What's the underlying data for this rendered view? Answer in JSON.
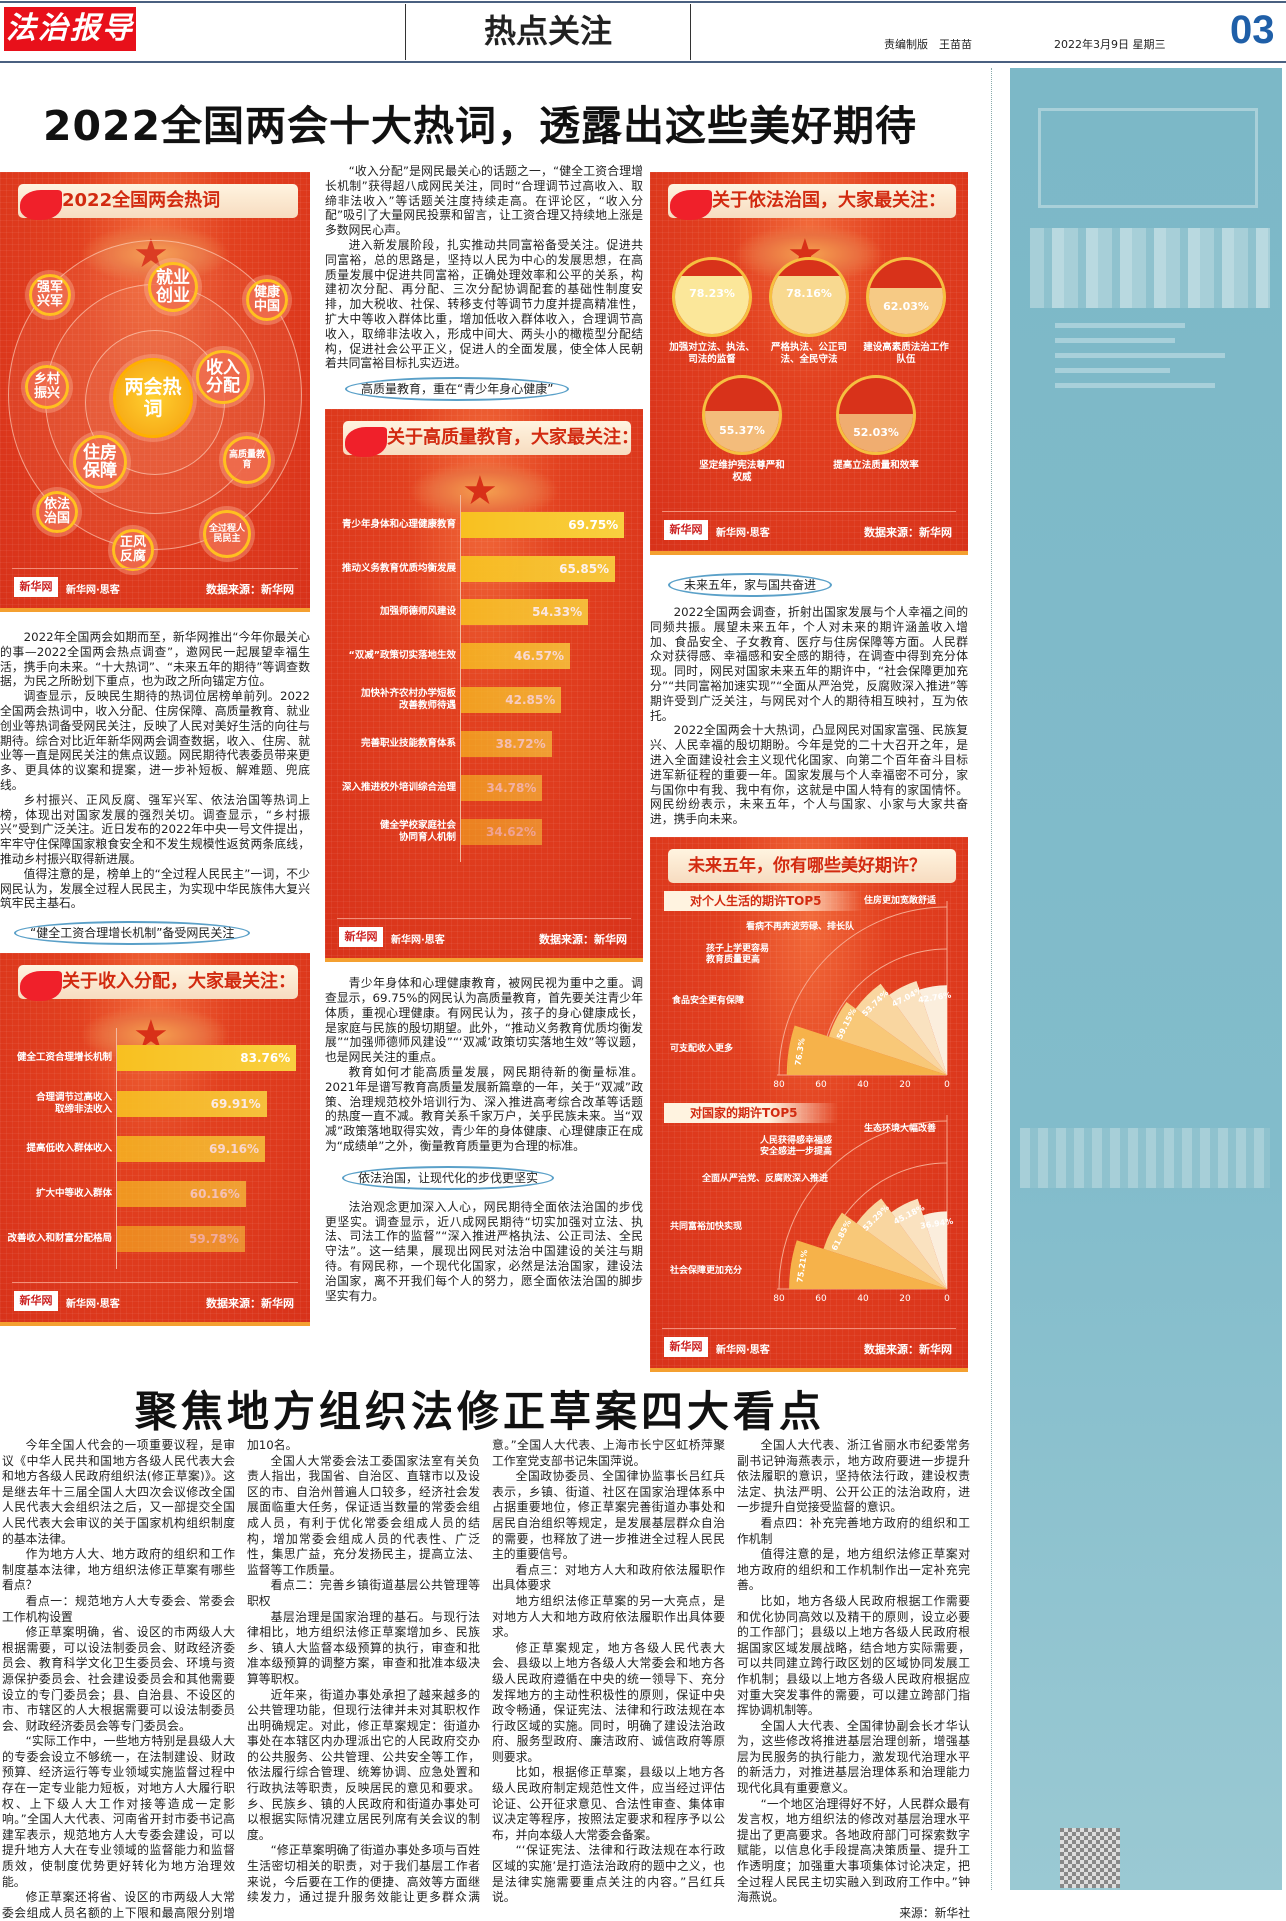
{
  "masthead": {
    "logo": "法治报导",
    "section": "热点关注",
    "editor": "责编制版　王苗苗",
    "date": "2022年3月9日 星期三",
    "page_number": "03",
    "accent_color": "#1f5fa8"
  },
  "article1": {
    "title": "2022全国两会十大热词，透露出这些美好期待",
    "col1_paragraphs": [
      "2022年全国两会如期而至，新华网推出“今年你最关心的事—2022全国两会热点调查”，邀网民一起展望幸福生活，携手向未来。“十大热词”、“未来五年的期待”等调查数据，为民之所盼划下重点，也为政之所向锚定方位。",
      "调查显示，反映民生期待的热词位居榜单前列。2022全国两会热词中，收入分配、住房保障、高质量教育、就业创业等热词备受网民关注，反映了人民对美好生活的向往与期待。综合对比近年新华网两会调查数据，收入、住房、就业等一直是网民关注的焦点议题。网民期待代表委员带来更多、更具体的议案和提案，进一步补短板、解难题、兜底线。",
      "乡村振兴、正风反腐、强军兴军、依法治国等热词上榜，体现出对国家发展的强烈关切。调查显示，“乡村振兴”受到广泛关注。近日发布的2022年中央一号文件提出，牢牢守住保障国家粮食安全和不发生规模性返贫两条底线，推动乡村振兴取得新进展。",
      "值得注意的是，榜单上的“全过程人民民主”一词，不少网民认为，发展全过程人民民主，为实现中华民族伟大复兴筑牢民主基石。"
    ],
    "heading_income": "“健全工资合理增长机制”备受网民关注",
    "col2_paragraphs": [
      "“收入分配”是网民最关心的话题之一，“健全工资合理增长机制”获得超八成网民关注，同时“合理调节过高收入、取缔非法收入”等话题关注度持续走高。在评论区，“收入分配”吸引了大量网民投票和留言，让工资合理又持续地上涨是多数网民心声。",
      "进入新发展阶段，扎实推动共同富裕备受关注。促进共同富裕，总的思路是，坚持以人民为中心的发展思想，在高质量发展中促进共同富裕，正确处理效率和公平的关系，构建初次分配、再分配、三次分配协调配套的基础性制度安排，加大税收、社保、转移支付等调节力度并提高精准性，扩大中等收入群体比重，增加低收入群体收入，合理调节高收入，取缔非法收入，形成中间大、两头小的橄榄型分配结构，促进社会公平正义，促进人的全面发展，使全体人民朝着共同富裕目标扎实迈进。"
    ],
    "heading_education": "高质量教育，重在“青少年身心健康”",
    "col2b_paragraphs": [
      "青少年身体和心理健康教育，被网民视为重中之重。调查显示，69.75%的网民认为高质量教育，首先要关注青少年体质，重视心理健康。有网民认为，孩子的身心健康成长，是家庭与民族的殷切期望。此外，“推动义务教育优质均衡发展”“加强师德师风建设”“‘双减’政策切实落地生效”等议题，也是网民关注的重点。",
      "教育如何才能高质量发展，网民期待新的衡量标准。2021年是谱写教育高质量发展新篇章的一年，关于“双减”政策、治理规范校外培训行为、深入推进高考综合改革等话题的热度一直不减。教育关系千家万户，关乎民族未来。当“双减”政策落地取得实效，青少年的身体健康、心理健康正在成为“成绩单”之外，衡量教育质量更为合理的标准。"
    ],
    "heading_law": "依法治国，让现代化的步伐更坚实",
    "col2c_paragraphs": [
      "法治观念更加深入人心，网民期待全面依法治国的步伐更坚实。调查显示，近八成网民期待“切实加强对立法、执法、司法工作的监督”“深入推进严格执法、公正司法、全民守法”。这一结果，展现出网民对法治中国建设的关注与期待。有网民称，一个现代化国家，必然是法治国家，建设法治国家，离不开我们每个人的努力，愿全面依法治国的脚步坚实有力。"
    ],
    "heading_future": "未来五年，家与国共奋进",
    "col3_paragraphs": [
      "2022全国两会调查，折射出国家发展与个人幸福之间的同频共振。展望未来五年，个人对未来的期许涵盖收入增加、食品安全、子女教育、医疗与住房保障等方面。人民群众对获得感、幸福感和安全感的期待，在调查中得到充分体现。同时，网民对国家未来五年的期许中，“社会保障更加充分”“共同富裕加速实现”“全面从严治党，反腐败深入推进”等期许受到广泛关注，与网民对个人的期待相互映衬，互为依托。",
      "2022全国两会十大热词，凸显网民对国家富强、民族复兴、人民幸福的殷切期盼。今年是党的二十大召开之年，是进入全面建设社会主义现代化国家、向第二个百年奋斗目标进军新征程的重要一年。国家发展与个人幸福密不可分，家与国你中有我、我中有你，这就是中国人特有的家国情怀。网民纷纷表示，未来五年，个人与国家、小家与大家共奋进，携手向未来。"
    ]
  },
  "infographic_common": {
    "brand": "新华网·思客",
    "logo_text": "新华网",
    "source": "数据来源：新华网",
    "bg_color": "#d8321a",
    "bar_color": "#f8c020"
  },
  "hotwords": {
    "title": "2022全国两会热词",
    "center": "两会热词",
    "words": [
      "就业创业",
      "健康中国",
      "强军兴军",
      "乡村振兴",
      "收入分配",
      "住房保障",
      "高质量教育",
      "依法治国",
      "正风反腐",
      "全过程人民民主"
    ]
  },
  "chart_data": [
    {
      "type": "bar",
      "orientation": "horizontal",
      "title": "关于收入分配，大家最关注：",
      "categories": [
        "健全工资合理增长机制",
        "合理调节过高收入 取缔非法收入",
        "提高低收入群体收入",
        "扩大中等收入群体",
        "改善收入和财富分配格局"
      ],
      "values": [
        83.76,
        69.91,
        69.16,
        60.16,
        59.78
      ],
      "labels": [
        "83.76%",
        "69.91%",
        "69.16%",
        "60.16%",
        "59.78%"
      ],
      "unit": "%"
    },
    {
      "type": "bar",
      "orientation": "horizontal",
      "title": "关于高质量教育，大家最关注：",
      "categories": [
        "青少年身体和心理健康教育",
        "推动义务教育优质均衡发展",
        "加强师德师风建设",
        "“双减”政策切实落地生效",
        "加快补齐农村办学短板 改善教师待遇",
        "完善职业技能教育体系",
        "深入推进校外培训综合治理",
        "健全学校家庭社会 协同育人机制"
      ],
      "values": [
        69.75,
        65.85,
        54.33,
        46.57,
        42.85,
        38.72,
        34.78,
        34.62
      ],
      "labels": [
        "69.75%",
        "65.85%",
        "54.33%",
        "46.57%",
        "42.85%",
        "38.72%",
        "34.78%",
        "34.62%"
      ],
      "unit": "%"
    },
    {
      "type": "gauge",
      "title": "关于依法治国，大家最关注：",
      "categories": [
        "加强对立法、执法、司法的监督",
        "严格执法、公正司法、全民守法",
        "建设高素质法治工作队伍",
        "坚定维护宪法尊严和权威",
        "提高立法质量和效率"
      ],
      "values": [
        78.23,
        78.16,
        62.03,
        55.37,
        52.03
      ],
      "labels": [
        "78.23%",
        "78.16%",
        "62.03%",
        "55.37%",
        "52.03%"
      ],
      "unit": "%"
    },
    {
      "type": "polar-bar",
      "title": "未来五年，你有哪些美好期许？",
      "subtitle": "对个人生活的期许TOP5",
      "categories": [
        "可支配收入更多",
        "食品安全更有保障",
        "孩子上学更容易 教育质量更高",
        "看病不再奔波劳碌、排长队",
        "住房更加宽敞舒适"
      ],
      "values": [
        76.3,
        59.15,
        53.74,
        47.04,
        42.76
      ],
      "labels": [
        "76.3%",
        "59.15%",
        "53.74%",
        "47.04%",
        "42.76%"
      ],
      "axis_ticks": [
        "80",
        "60",
        "40",
        "20",
        "0"
      ],
      "rlim": [
        0,
        80
      ]
    },
    {
      "type": "polar-bar",
      "subtitle": "对国家的期许TOP5",
      "categories": [
        "社会保障更加充分",
        "共同富裕加快实现",
        "全面从严治党、反腐败深入推进",
        "人民获得感幸福感 安全感进一步提高",
        "生态环境大幅改善"
      ],
      "values": [
        75.21,
        61.85,
        53.29,
        45.18,
        36.94
      ],
      "labels": [
        "75.21%",
        "61.85%",
        "53.29%",
        "45.18%",
        "36.94%"
      ],
      "axis_ticks": [
        "80",
        "60",
        "40",
        "20",
        "0"
      ],
      "rlim": [
        0,
        80
      ]
    }
  ],
  "article2": {
    "title": "聚焦地方组织法修正草案四大看点",
    "paragraphs": [
      "今年全国人代会的一项重要议程，是审议《中华人民共和国地方各级人民代表大会和地方各级人民政府组织法(修正草案)》。这是继去年十三届全国人大四次会议修改全国人民代表大会组织法之后，又一部提交全国人民代表大会审议的关于国家机构组织制度的基本法律。",
      "作为地方人大、地方政府的组织和工作制度基本法律，地方组织法修正草案有哪些看点？",
      "看点一：规范地方人大专委会、常委会工作机构设置",
      "修正草案明确，省、设区的市两级人大根据需要，可以设法制委员会、财政经济委员会、教育科学文化卫生委员会、环境与资源保护委员会、社会建设委员会和其他需要设立的专门委员会；县、自治县、不设区的市、市辖区的人大根据需要可以设法制委员会、财政经济委员会等专门委员会。",
      "“实际工作中，一些地方特别是县级人大的专委会设立不够统一，在法制建设、财政预算、经济运行等专业领域实施监督过程中存在一定专业能力短板，对地方人大履行职权、上下级人大工作对接等造成一定影响。”全国人大代表、河南省开封市委书记高建军表示，规范地方人大专委会建设，可以提升地方人大在专业领域的监督能力和监督质效，使制度优势更好转化为地方治理效能。",
      "修正草案还将省、设区的市两级人大常委会组成人员名额的上下限和最高限分别增加10名。",
      "全国人大常委会法工委国家法室有关负责人指出，我国省、自治区、直辖市以及设区的市、自治州普遍人口较多，经济社会发展面临重大任务，保证适当数量的常委会组成人员，有利于优化常委会组成人员的结构，增加常委会组成人员的代表性、广泛性，集思广益，充分发扬民主，提高立法、监督等工作质量。",
      "看点二：完善乡镇街道基层公共管理等职权",
      "基层治理是国家治理的基石。与现行法律相比，地方组织法修正草案增加乡、民族乡、镇人大监督本级预算的执行，审查和批准本级预算的调整方案，审查和批准本级决算等职权。",
      "近年来，街道办事处承担了越来越多的公共管理功能，但现行法律并未对其职权作出明确规定。对此，修正草案规定：街道办事处在本辖区内办理派出它的人民政府交办的公共服务、公共管理、公共安全等工作，依法履行综合管理、统筹协调、应急处置和行政执法等职责，反映居民的意见和要求。乡、民族乡、镇的人民政府和街道办事处可以根据实际情况建立居民列席有关会议的制度。",
      "“修正草案明确了街道办事处多项与百姓生活密切相关的职责，对于我们基层工作者来说，今后要在工作的便捷、高效等方面继续发力，通过提升服务效能让更多群众满意。”全国人大代表、上海市长宁区虹桥萍聚工作室党支部书记朱国萍说。",
      "全国政协委员、全国律协监事长吕红兵表示，乡镇、街道、社区在国家治理体系中占据重要地位，修正草案完善街道办事处和居民自治组织等规定，是发展基层群众自治的需要，也释放了进一步推进全过程人民民主的重要信号。",
      "看点三：对地方人大和政府依法履职作出具体要求",
      "地方组织法修正草案的另一大亮点，是对地方人大和地方政府依法履职作出具体要求。",
      "修正草案规定，地方各级人民代表大会、县级以上地方各级人大常委会和地方各级人民政府遵循在中央的统一领导下、充分发挥地方的主动性积极性的原则，保证中央政令畅通，保证宪法、法律和行政法规在本行政区域的实施。同时，明确了建设法治政府、服务型政府、廉洁政府、诚信政府等原则要求。",
      "比如，根据修正草案，县级以上地方各级人民政府制定规范性文件，应当经过评估论证、公开征求意见、合法性审查、集体审议决定等程序，按照法定要求和程序予以公布，并向本级人大常委会备案。",
      "“‘保证宪法、法律和行政法规在本行政区域的实施’是打造法治政府的题中之义，也是法律实施需要重点关注的内容。”吕红兵说。",
      "全国人大代表、浙江省丽水市纪委常务副书记钟海燕表示，地方政府要进一步提升依法履职的意识，坚持依法行政，建设权责法定、执法严明、公开公正的法治政府，进一步提升自觉接受监督的意识。",
      "看点四：补充完善地方政府的组织和工作机制",
      "值得注意的是，地方组织法修正草案对地方政府的组织和工作机制作出一定补充完善。",
      "比如，地方各级人民政府根据工作需要和优化协同高效以及精干的原则，设立必要的工作部门；县级以上地方各级人民政府根据国家区域发展战略，结合地方实际需要，可以共同建立跨行政区划的区域协同发展工作机制；县级以上地方各级人民政府根据应对重大突发事件的需要，可以建立跨部门指挥协调机制等。",
      "全国人大代表、全国律协副会长才华认为，这些修改将推进基层治理创新，增强基层为民服务的执行能力，激发现代治理水平的新活力，对推进基层治理体系和治理能力现代化具有重要意义。",
      "“一个地区治理得好不好，人民群众最有发言权，地方组织法的修改对基层治理水平提出了更高要求。各地政府部门可探索数字赋能，以信息化手段提高决策质量、提升工作透明度；加强重大事项集体讨论决定，把全过程人民民主切实融入到政府工作中。”钟海燕说。"
    ],
    "source": "来源：新华社"
  },
  "sidebar_ad": {
    "bg_color": "#7cb8c7"
  }
}
